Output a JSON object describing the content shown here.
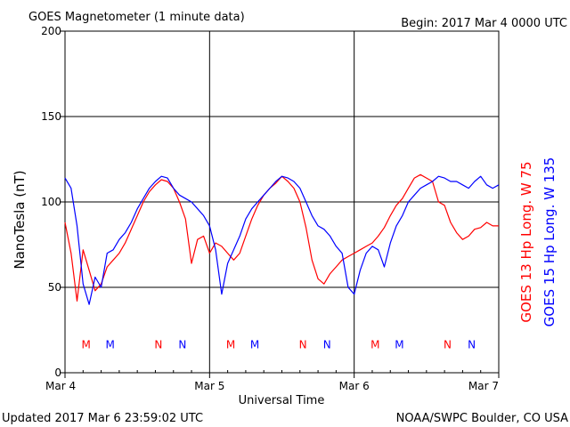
{
  "chart_data": {
    "type": "line",
    "title": "GOES Magnetometer (1 minute data)",
    "begin_label": "Begin:  2017 Mar 4 0000 UTC",
    "xlabel": "Universal Time",
    "ylabel": "NanoTesla (nT)",
    "x_range": [
      "2017-03-04T00:00",
      "2017-03-07T00:00"
    ],
    "x_ticks": [
      "Mar 4",
      "Mar 5",
      "Mar 6",
      "Mar 7"
    ],
    "ylim": [
      0,
      200
    ],
    "y_ticks": [
      "0",
      "50",
      "100",
      "150",
      "200"
    ],
    "grid": true,
    "series": [
      {
        "name": "GOES 13 Hp  Long. W 75",
        "color": "#ff0000",
        "x_hours": [
          0,
          1,
          2,
          3,
          4,
          5,
          6,
          7,
          8,
          9,
          10,
          11,
          12,
          13,
          14,
          15,
          16,
          17,
          18,
          19,
          20,
          21,
          22,
          23,
          24,
          25,
          26,
          27,
          28,
          29,
          30,
          31,
          32,
          33,
          34,
          35,
          36,
          37,
          38,
          39,
          40,
          41,
          42,
          43,
          44,
          45,
          46,
          47,
          48,
          49,
          50,
          51,
          52,
          53,
          54,
          55,
          56,
          57,
          58,
          59,
          60,
          61,
          62,
          63,
          64,
          65,
          66,
          67,
          68,
          69,
          70,
          71,
          72
        ],
        "values": [
          88,
          70,
          42,
          72,
          60,
          48,
          52,
          62,
          66,
          70,
          76,
          84,
          92,
          100,
          106,
          110,
          113,
          112,
          108,
          100,
          90,
          64,
          78,
          80,
          70,
          76,
          74,
          70,
          66,
          70,
          80,
          90,
          98,
          104,
          108,
          111,
          115,
          112,
          108,
          100,
          85,
          66,
          55,
          52,
          58,
          62,
          66,
          68,
          70,
          72,
          74,
          76,
          80,
          85,
          92,
          98,
          102,
          108,
          114,
          116,
          114,
          112,
          100,
          98,
          88,
          82,
          78,
          80,
          84,
          85,
          88,
          86,
          86
        ]
      },
      {
        "name": "GOES 15 Hp  Long. W 135",
        "color": "#0000ff",
        "x_hours": [
          0,
          1,
          2,
          3,
          4,
          5,
          6,
          7,
          8,
          9,
          10,
          11,
          12,
          13,
          14,
          15,
          16,
          17,
          18,
          19,
          20,
          21,
          22,
          23,
          24,
          25,
          26,
          27,
          28,
          29,
          30,
          31,
          32,
          33,
          34,
          35,
          36,
          37,
          38,
          39,
          40,
          41,
          42,
          43,
          44,
          45,
          46,
          47,
          48,
          49,
          50,
          51,
          52,
          53,
          54,
          55,
          56,
          57,
          58,
          59,
          60,
          61,
          62,
          63,
          64,
          65,
          66,
          67,
          68,
          69,
          70,
          71,
          72
        ],
        "values": [
          114,
          108,
          86,
          52,
          40,
          56,
          50,
          70,
          72,
          78,
          82,
          88,
          96,
          102,
          108,
          112,
          115,
          114,
          108,
          104,
          102,
          100,
          96,
          92,
          86,
          72,
          46,
          64,
          72,
          80,
          90,
          96,
          100,
          104,
          108,
          112,
          115,
          114,
          112,
          108,
          100,
          92,
          86,
          84,
          80,
          74,
          70,
          50,
          46,
          60,
          70,
          74,
          72,
          62,
          76,
          86,
          92,
          100,
          104,
          108,
          110,
          112,
          115,
          114,
          112,
          112,
          110,
          108,
          112,
          115,
          110,
          108,
          110
        ]
      }
    ],
    "annotations": [
      {
        "text": "M",
        "hour": 3.5,
        "color": "#ff0000"
      },
      {
        "text": "M",
        "hour": 7.5,
        "color": "#0000ff"
      },
      {
        "text": "N",
        "hour": 15.5,
        "color": "#ff0000"
      },
      {
        "text": "N",
        "hour": 19.5,
        "color": "#0000ff"
      },
      {
        "text": "M",
        "hour": 27.5,
        "color": "#ff0000"
      },
      {
        "text": "M",
        "hour": 31.5,
        "color": "#0000ff"
      },
      {
        "text": "N",
        "hour": 39.5,
        "color": "#ff0000"
      },
      {
        "text": "N",
        "hour": 43.5,
        "color": "#0000ff"
      },
      {
        "text": "M",
        "hour": 51.5,
        "color": "#ff0000"
      },
      {
        "text": "M",
        "hour": 55.5,
        "color": "#0000ff"
      },
      {
        "text": "N",
        "hour": 63.5,
        "color": "#ff0000"
      },
      {
        "text": "N",
        "hour": 67.5,
        "color": "#0000ff"
      }
    ],
    "annotation_value": 17
  },
  "footer": {
    "updated": "Updated 2017 Mar  6 23:59:02 UTC",
    "credit": "NOAA/SWPC Boulder, CO USA"
  }
}
